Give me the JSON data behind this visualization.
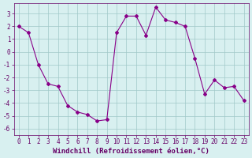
{
  "x": [
    0,
    1,
    2,
    3,
    4,
    5,
    6,
    7,
    8,
    9,
    10,
    11,
    12,
    13,
    14,
    15,
    16,
    17,
    18,
    19,
    20,
    21,
    22,
    23
  ],
  "y": [
    2.0,
    1.5,
    -1.0,
    -2.5,
    -2.7,
    -4.2,
    -4.7,
    -4.9,
    -5.4,
    -5.3,
    1.5,
    2.8,
    2.8,
    1.3,
    3.5,
    2.5,
    2.3,
    2.0,
    -0.5,
    -3.3,
    -2.2,
    -2.8,
    -2.7,
    -3.8
  ],
  "line_color": "#880088",
  "marker": "D",
  "marker_size": 2,
  "bg_color": "#d8f0f0",
  "grid_color": "#a0c8c8",
  "xlabel": "Windchill (Refroidissement éolien,°C)",
  "xlim_min": -0.5,
  "xlim_max": 23.5,
  "ylim_min": -6.5,
  "ylim_max": 3.8,
  "yticks": [
    -6,
    -5,
    -4,
    -3,
    -2,
    -1,
    0,
    1,
    2,
    3
  ],
  "xticks": [
    0,
    1,
    2,
    3,
    4,
    5,
    6,
    7,
    8,
    9,
    10,
    11,
    12,
    13,
    14,
    15,
    16,
    17,
    18,
    19,
    20,
    21,
    22,
    23
  ],
  "axis_color": "#660066",
  "tick_fontsize": 5.5,
  "label_fontsize": 6.5
}
